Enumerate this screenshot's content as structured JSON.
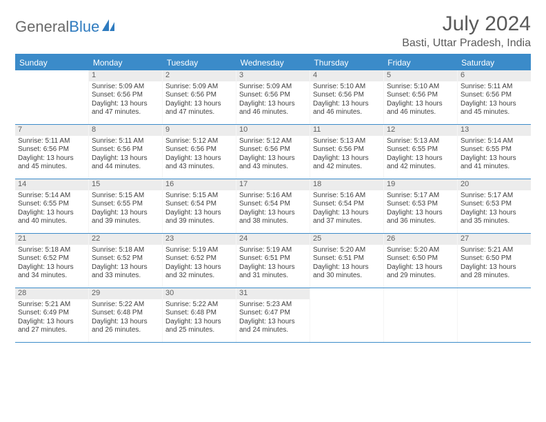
{
  "brand": {
    "part1": "General",
    "part2": "Blue"
  },
  "title": "July 2024",
  "location": "Basti, Uttar Pradesh, India",
  "colors": {
    "header_bg": "#3b8bc9",
    "header_text": "#ffffff",
    "daynum_bg": "#ececec",
    "text": "#404040",
    "brand_gray": "#6a6a6a",
    "brand_blue": "#2f7bbf"
  },
  "day_headers": [
    "Sunday",
    "Monday",
    "Tuesday",
    "Wednesday",
    "Thursday",
    "Friday",
    "Saturday"
  ],
  "weeks": [
    [
      {
        "n": "",
        "sr": "",
        "ss": "",
        "dl": ""
      },
      {
        "n": "1",
        "sr": "Sunrise: 5:09 AM",
        "ss": "Sunset: 6:56 PM",
        "dl": "Daylight: 13 hours and 47 minutes."
      },
      {
        "n": "2",
        "sr": "Sunrise: 5:09 AM",
        "ss": "Sunset: 6:56 PM",
        "dl": "Daylight: 13 hours and 47 minutes."
      },
      {
        "n": "3",
        "sr": "Sunrise: 5:09 AM",
        "ss": "Sunset: 6:56 PM",
        "dl": "Daylight: 13 hours and 46 minutes."
      },
      {
        "n": "4",
        "sr": "Sunrise: 5:10 AM",
        "ss": "Sunset: 6:56 PM",
        "dl": "Daylight: 13 hours and 46 minutes."
      },
      {
        "n": "5",
        "sr": "Sunrise: 5:10 AM",
        "ss": "Sunset: 6:56 PM",
        "dl": "Daylight: 13 hours and 46 minutes."
      },
      {
        "n": "6",
        "sr": "Sunrise: 5:11 AM",
        "ss": "Sunset: 6:56 PM",
        "dl": "Daylight: 13 hours and 45 minutes."
      }
    ],
    [
      {
        "n": "7",
        "sr": "Sunrise: 5:11 AM",
        "ss": "Sunset: 6:56 PM",
        "dl": "Daylight: 13 hours and 45 minutes."
      },
      {
        "n": "8",
        "sr": "Sunrise: 5:11 AM",
        "ss": "Sunset: 6:56 PM",
        "dl": "Daylight: 13 hours and 44 minutes."
      },
      {
        "n": "9",
        "sr": "Sunrise: 5:12 AM",
        "ss": "Sunset: 6:56 PM",
        "dl": "Daylight: 13 hours and 43 minutes."
      },
      {
        "n": "10",
        "sr": "Sunrise: 5:12 AM",
        "ss": "Sunset: 6:56 PM",
        "dl": "Daylight: 13 hours and 43 minutes."
      },
      {
        "n": "11",
        "sr": "Sunrise: 5:13 AM",
        "ss": "Sunset: 6:56 PM",
        "dl": "Daylight: 13 hours and 42 minutes."
      },
      {
        "n": "12",
        "sr": "Sunrise: 5:13 AM",
        "ss": "Sunset: 6:55 PM",
        "dl": "Daylight: 13 hours and 42 minutes."
      },
      {
        "n": "13",
        "sr": "Sunrise: 5:14 AM",
        "ss": "Sunset: 6:55 PM",
        "dl": "Daylight: 13 hours and 41 minutes."
      }
    ],
    [
      {
        "n": "14",
        "sr": "Sunrise: 5:14 AM",
        "ss": "Sunset: 6:55 PM",
        "dl": "Daylight: 13 hours and 40 minutes."
      },
      {
        "n": "15",
        "sr": "Sunrise: 5:15 AM",
        "ss": "Sunset: 6:55 PM",
        "dl": "Daylight: 13 hours and 39 minutes."
      },
      {
        "n": "16",
        "sr": "Sunrise: 5:15 AM",
        "ss": "Sunset: 6:54 PM",
        "dl": "Daylight: 13 hours and 39 minutes."
      },
      {
        "n": "17",
        "sr": "Sunrise: 5:16 AM",
        "ss": "Sunset: 6:54 PM",
        "dl": "Daylight: 13 hours and 38 minutes."
      },
      {
        "n": "18",
        "sr": "Sunrise: 5:16 AM",
        "ss": "Sunset: 6:54 PM",
        "dl": "Daylight: 13 hours and 37 minutes."
      },
      {
        "n": "19",
        "sr": "Sunrise: 5:17 AM",
        "ss": "Sunset: 6:53 PM",
        "dl": "Daylight: 13 hours and 36 minutes."
      },
      {
        "n": "20",
        "sr": "Sunrise: 5:17 AM",
        "ss": "Sunset: 6:53 PM",
        "dl": "Daylight: 13 hours and 35 minutes."
      }
    ],
    [
      {
        "n": "21",
        "sr": "Sunrise: 5:18 AM",
        "ss": "Sunset: 6:52 PM",
        "dl": "Daylight: 13 hours and 34 minutes."
      },
      {
        "n": "22",
        "sr": "Sunrise: 5:18 AM",
        "ss": "Sunset: 6:52 PM",
        "dl": "Daylight: 13 hours and 33 minutes."
      },
      {
        "n": "23",
        "sr": "Sunrise: 5:19 AM",
        "ss": "Sunset: 6:52 PM",
        "dl": "Daylight: 13 hours and 32 minutes."
      },
      {
        "n": "24",
        "sr": "Sunrise: 5:19 AM",
        "ss": "Sunset: 6:51 PM",
        "dl": "Daylight: 13 hours and 31 minutes."
      },
      {
        "n": "25",
        "sr": "Sunrise: 5:20 AM",
        "ss": "Sunset: 6:51 PM",
        "dl": "Daylight: 13 hours and 30 minutes."
      },
      {
        "n": "26",
        "sr": "Sunrise: 5:20 AM",
        "ss": "Sunset: 6:50 PM",
        "dl": "Daylight: 13 hours and 29 minutes."
      },
      {
        "n": "27",
        "sr": "Sunrise: 5:21 AM",
        "ss": "Sunset: 6:50 PM",
        "dl": "Daylight: 13 hours and 28 minutes."
      }
    ],
    [
      {
        "n": "28",
        "sr": "Sunrise: 5:21 AM",
        "ss": "Sunset: 6:49 PM",
        "dl": "Daylight: 13 hours and 27 minutes."
      },
      {
        "n": "29",
        "sr": "Sunrise: 5:22 AM",
        "ss": "Sunset: 6:48 PM",
        "dl": "Daylight: 13 hours and 26 minutes."
      },
      {
        "n": "30",
        "sr": "Sunrise: 5:22 AM",
        "ss": "Sunset: 6:48 PM",
        "dl": "Daylight: 13 hours and 25 minutes."
      },
      {
        "n": "31",
        "sr": "Sunrise: 5:23 AM",
        "ss": "Sunset: 6:47 PM",
        "dl": "Daylight: 13 hours and 24 minutes."
      },
      {
        "n": "",
        "sr": "",
        "ss": "",
        "dl": ""
      },
      {
        "n": "",
        "sr": "",
        "ss": "",
        "dl": ""
      },
      {
        "n": "",
        "sr": "",
        "ss": "",
        "dl": ""
      }
    ]
  ]
}
